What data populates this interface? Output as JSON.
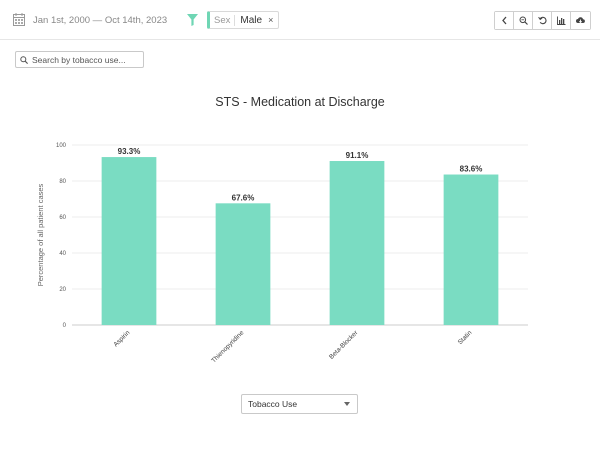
{
  "header": {
    "date_range": "Jan 1st, 2000 — Oct 14th, 2023",
    "filter_chip": {
      "key": "Sex",
      "value": "Male",
      "remove": "×"
    },
    "toolbar_icons": [
      "chevron-left-icon",
      "zoom-icon",
      "reset-icon",
      "chart-icon",
      "cloud-download-icon"
    ]
  },
  "search": {
    "placeholder": "Search by tobacco use..."
  },
  "selector": {
    "value": "Tobacco Use"
  },
  "colors": {
    "accent": "#6fd6b4",
    "bar": "#7adcc2"
  },
  "chart_data": {
    "type": "bar",
    "title": "STS - Medication at Discharge",
    "ylabel": "Percentage of all patient cases",
    "xlabel": "",
    "categories": [
      "Aspirin",
      "Thienopyridine",
      "Beta-Blocker",
      "Statin"
    ],
    "values": [
      93.3,
      67.6,
      91.1,
      83.6
    ],
    "value_labels": [
      "93.3%",
      "67.6%",
      "91.1%",
      "83.6%"
    ],
    "ylim": [
      0,
      100
    ],
    "yticks": [
      0,
      20,
      40,
      60,
      80,
      100
    ],
    "grid": true,
    "legend": "none"
  }
}
